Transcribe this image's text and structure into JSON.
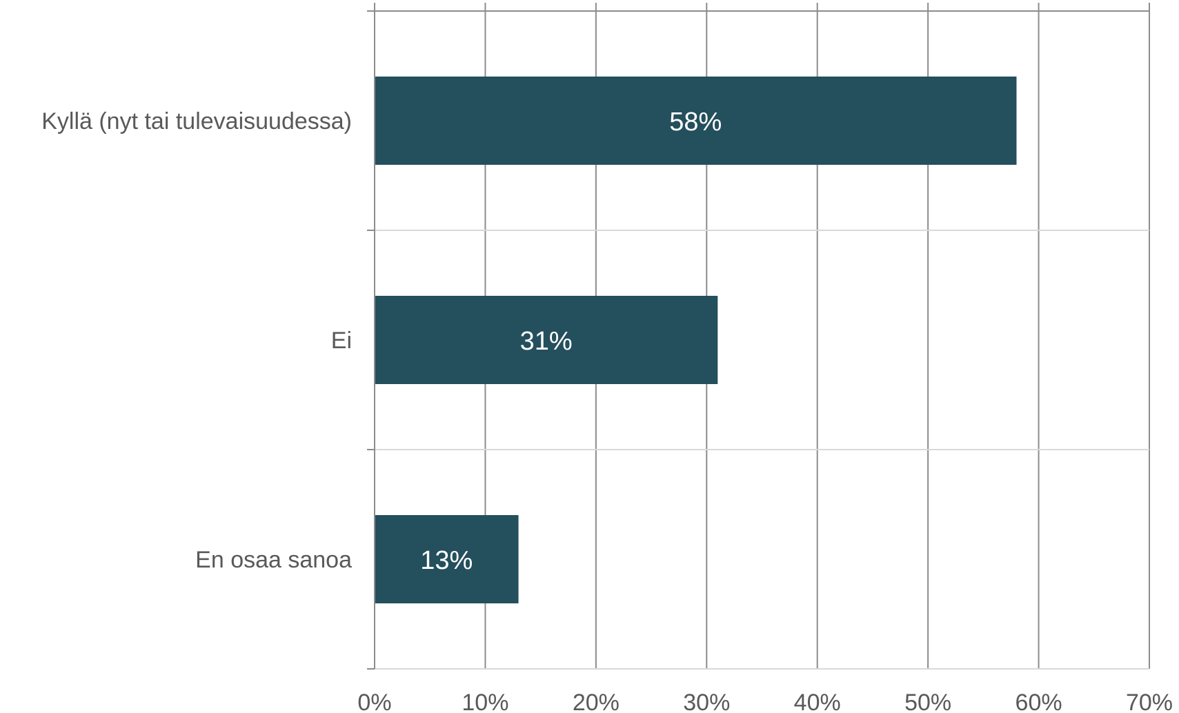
{
  "chart_data": {
    "type": "bar",
    "orientation": "horizontal",
    "categories": [
      "Kyllä (nyt tai tulevaisuudessa)",
      "Ei",
      "En osaa sanoa"
    ],
    "values": [
      58,
      31,
      13
    ],
    "data_labels": [
      "58%",
      "31%",
      "13%"
    ],
    "x_ticks": [
      "0%",
      "10%",
      "20%",
      "30%",
      "40%",
      "50%",
      "60%",
      "70%"
    ],
    "xlim": [
      0,
      70
    ],
    "grid": true,
    "bar_color": "#244f5d",
    "title": "",
    "xlabel": "",
    "ylabel": ""
  }
}
